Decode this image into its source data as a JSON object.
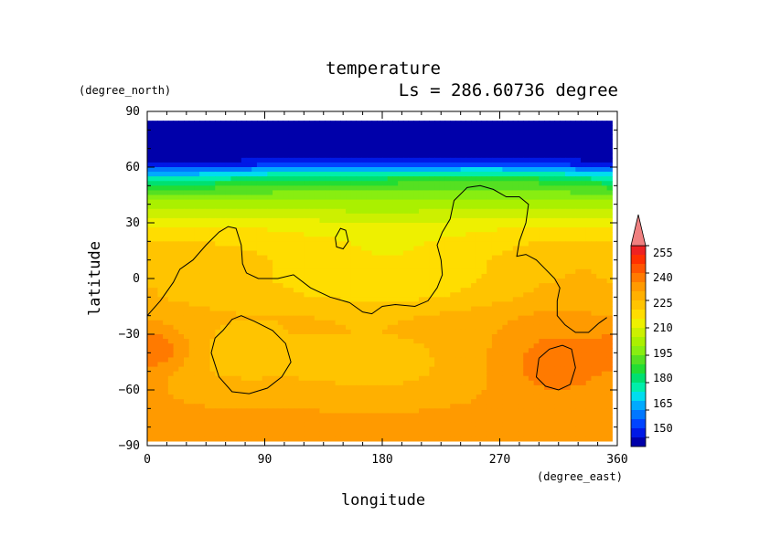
{
  "chart_data": {
    "type": "heatmap",
    "title": "temperature",
    "subtitle": "Ls = 286.60736 degree",
    "xlabel": "longitude",
    "ylabel": "latitude",
    "x_unit": "(degree_east)",
    "y_unit": "(degree_north)",
    "xlim": [
      0,
      360
    ],
    "ylim": [
      -90,
      90
    ],
    "x_ticks": [
      "0",
      "90",
      "180",
      "270",
      "360"
    ],
    "y_ticks": [
      "90",
      "60",
      "30",
      "0",
      "−30",
      "−60",
      "−90"
    ],
    "x_tick_values": [
      0,
      90,
      180,
      270,
      360
    ],
    "y_tick_values": [
      90,
      60,
      30,
      0,
      -30,
      -60,
      -90
    ],
    "data_lat_range": [
      -87.5,
      85
    ],
    "data_lon_range": [
      0,
      356
    ],
    "colorbar": {
      "levels": [
        140,
        145,
        150,
        155,
        160,
        165,
        170,
        175,
        180,
        185,
        190,
        195,
        200,
        205,
        210,
        215,
        220,
        225,
        230,
        235,
        240,
        245,
        250,
        255,
        260
      ],
      "labels": [
        "150",
        "165",
        "180",
        "195",
        "210",
        "225",
        "240",
        "255"
      ],
      "label_values": [
        150,
        165,
        180,
        195,
        210,
        225,
        240,
        255
      ],
      "colors": [
        "#0000aa",
        "#0019e6",
        "#0044ff",
        "#0077ff",
        "#00aaff",
        "#00ddee",
        "#00eeaa",
        "#00e070",
        "#22dd33",
        "#55e022",
        "#88ee11",
        "#aaf000",
        "#ccf000",
        "#eef000",
        "#ffdd00",
        "#ffc400",
        "#ffb000",
        "#ff9a00",
        "#ff7a00",
        "#ff5500",
        "#ff3000",
        "#ee2222"
      ],
      "extend_color": "#f08080",
      "extend": "max"
    },
    "temperature_zonal_profile": [
      {
        "lat": 85,
        "value": 145
      },
      {
        "lat": 70,
        "value": 146
      },
      {
        "lat": 62,
        "value": 150
      },
      {
        "lat": 58,
        "value": 165
      },
      {
        "lat": 53,
        "value": 180
      },
      {
        "lat": 48,
        "value": 190
      },
      {
        "lat": 42,
        "value": 198
      },
      {
        "lat": 35,
        "value": 205
      },
      {
        "lat": 28,
        "value": 211
      },
      {
        "lat": 20,
        "value": 214
      },
      {
        "lat": 10,
        "value": 216
      },
      {
        "lat": 0,
        "value": 217
      },
      {
        "lat": -10,
        "value": 220
      },
      {
        "lat": -20,
        "value": 226
      },
      {
        "lat": -30,
        "value": 228
      },
      {
        "lat": -45,
        "value": 229
      },
      {
        "lat": -60,
        "value": 230
      },
      {
        "lat": -75,
        "value": 232
      },
      {
        "lat": -87.5,
        "value": 232
      }
    ],
    "anomalies": [
      {
        "lat": 20,
        "lon": 0,
        "dlat": 18,
        "dlon": 180,
        "amp": 3
      },
      {
        "lat": 5,
        "lon": 50,
        "dlat": 16,
        "dlon": 55,
        "amp": 4
      },
      {
        "lat": 5,
        "lon": 190,
        "dlat": 15,
        "dlon": 70,
        "amp": -3
      },
      {
        "lat": 0,
        "lon": 310,
        "dlat": 18,
        "dlon": 50,
        "amp": 6
      },
      {
        "lat": -42,
        "lon": 60,
        "dlat": 16,
        "dlon": 40,
        "amp": -5
      },
      {
        "lat": -48,
        "lon": 175,
        "dlat": 15,
        "dlon": 55,
        "amp": -6
      },
      {
        "lat": -45,
        "lon": 315,
        "dlat": 14,
        "dlon": 35,
        "amp": 9
      },
      {
        "lat": -38,
        "lon": 10,
        "dlat": 8,
        "dlon": 18,
        "amp": 9
      },
      {
        "lat": 55,
        "lon": 130,
        "dlat": 6,
        "dlon": 80,
        "amp": 6
      },
      {
        "lat": 55,
        "lon": 270,
        "dlat": 6,
        "dlon": 55,
        "amp": 8
      },
      {
        "lat": 56,
        "lon": 20,
        "dlat": 6,
        "dlon": 40,
        "amp": -5
      }
    ],
    "topography_contours": [
      [
        [
          0,
          -20
        ],
        [
          10,
          -12
        ],
        [
          20,
          -2
        ],
        [
          25,
          5
        ],
        [
          35,
          10
        ],
        [
          45,
          18
        ],
        [
          55,
          25
        ],
        [
          62,
          28
        ],
        [
          68,
          27
        ],
        [
          72,
          18
        ],
        [
          73,
          8
        ],
        [
          76,
          3
        ],
        [
          85,
          0
        ],
        [
          100,
          0
        ],
        [
          112,
          2
        ],
        [
          125,
          -5
        ],
        [
          140,
          -10
        ],
        [
          155,
          -13
        ],
        [
          165,
          -18
        ],
        [
          172,
          -19
        ],
        [
          180,
          -15
        ],
        [
          190,
          -14
        ],
        [
          205,
          -15
        ],
        [
          215,
          -12
        ],
        [
          222,
          -5
        ],
        [
          226,
          2
        ],
        [
          225,
          10
        ],
        [
          222,
          18
        ],
        [
          226,
          25
        ],
        [
          232,
          32
        ],
        [
          235,
          42
        ],
        [
          245,
          49
        ],
        [
          255,
          50
        ],
        [
          265,
          48
        ],
        [
          275,
          44
        ],
        [
          285,
          44
        ],
        [
          292,
          40
        ],
        [
          290,
          30
        ],
        [
          285,
          20
        ],
        [
          283,
          12
        ],
        [
          290,
          13
        ],
        [
          298,
          10
        ],
        [
          305,
          5
        ],
        [
          312,
          0
        ],
        [
          316,
          -5
        ],
        [
          314,
          -12
        ],
        [
          314,
          -20
        ],
        [
          320,
          -25
        ],
        [
          328,
          -29
        ],
        [
          338,
          -29
        ],
        [
          346,
          -24
        ],
        [
          352,
          -21
        ]
      ],
      [
        [
          144,
          22
        ],
        [
          148,
          27
        ],
        [
          152,
          26
        ],
        [
          154,
          20
        ],
        [
          150,
          16
        ],
        [
          145,
          17
        ],
        [
          144,
          22
        ]
      ],
      [
        [
          58,
          -28
        ],
        [
          65,
          -22
        ],
        [
          72,
          -20
        ],
        [
          82,
          -23
        ],
        [
          96,
          -28
        ],
        [
          106,
          -35
        ],
        [
          110,
          -45
        ],
        [
          103,
          -53
        ],
        [
          92,
          -59
        ],
        [
          78,
          -62
        ],
        [
          65,
          -61
        ],
        [
          55,
          -53
        ],
        [
          49,
          -40
        ],
        [
          52,
          -32
        ],
        [
          58,
          -28
        ]
      ],
      [
        [
          300,
          -43
        ],
        [
          308,
          -38
        ],
        [
          318,
          -36
        ],
        [
          325,
          -38
        ],
        [
          328,
          -48
        ],
        [
          324,
          -57
        ],
        [
          315,
          -60
        ],
        [
          305,
          -58
        ],
        [
          298,
          -53
        ],
        [
          300,
          -43
        ]
      ]
    ]
  }
}
